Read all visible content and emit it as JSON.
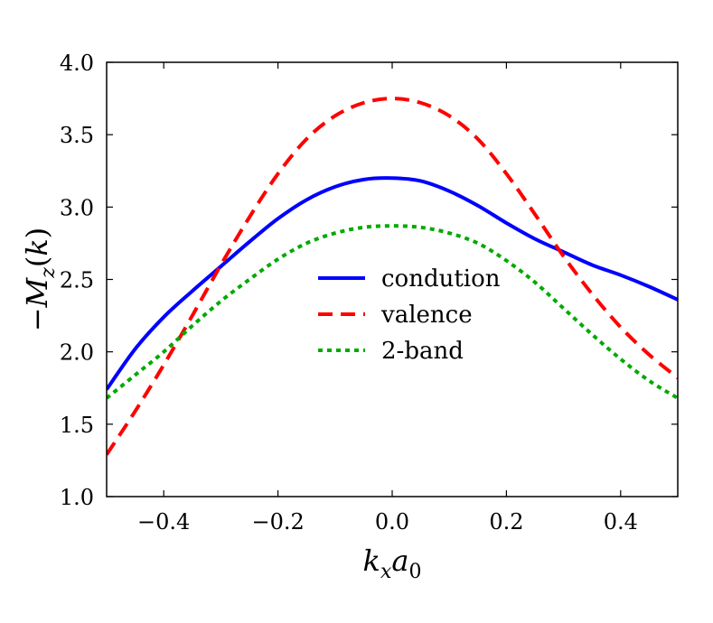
{
  "chart_data": {
    "type": "line",
    "title": "",
    "xlabel": "k_x a_0",
    "ylabel": "−M_z(k)",
    "xlim": [
      -0.5,
      0.5
    ],
    "ylim": [
      1.0,
      4.0
    ],
    "xticks": [
      -0.4,
      -0.2,
      0.0,
      0.2,
      0.4
    ],
    "xtick_labels": [
      "−0.4",
      "−0.2",
      "0.0",
      "0.2",
      "0.4"
    ],
    "yticks": [
      1.0,
      1.5,
      2.0,
      2.5,
      3.0,
      3.5,
      4.0
    ],
    "ytick_labels": [
      "1.0",
      "1.5",
      "2.0",
      "2.5",
      "3.0",
      "3.5",
      "4.0"
    ],
    "grid": false,
    "legend_position": "center-right",
    "x": [
      -0.5,
      -0.45,
      -0.4,
      -0.35,
      -0.3,
      -0.25,
      -0.2,
      -0.15,
      -0.1,
      -0.05,
      0.0,
      0.05,
      0.1,
      0.15,
      0.2,
      0.25,
      0.3,
      0.35,
      0.4,
      0.45,
      0.5
    ],
    "series": [
      {
        "name": "condution",
        "color": "#0000ff",
        "style": "solid",
        "values": [
          1.74,
          2.02,
          2.24,
          2.42,
          2.59,
          2.76,
          2.92,
          3.05,
          3.14,
          3.19,
          3.2,
          3.18,
          3.11,
          3.01,
          2.89,
          2.78,
          2.69,
          2.6,
          2.53,
          2.45,
          2.36
        ]
      },
      {
        "name": "valence",
        "color": "#ff0000",
        "style": "dashed",
        "values": [
          1.29,
          1.59,
          1.91,
          2.25,
          2.6,
          2.93,
          3.23,
          3.47,
          3.63,
          3.72,
          3.75,
          3.72,
          3.63,
          3.47,
          3.23,
          2.95,
          2.66,
          2.4,
          2.17,
          1.98,
          1.82
        ]
      },
      {
        "name": "2-band",
        "color": "#00aa00",
        "style": "dotted",
        "values": [
          1.68,
          1.84,
          2.0,
          2.18,
          2.35,
          2.5,
          2.64,
          2.75,
          2.82,
          2.86,
          2.87,
          2.86,
          2.82,
          2.75,
          2.63,
          2.48,
          2.3,
          2.12,
          1.95,
          1.8,
          1.68
        ]
      }
    ]
  }
}
